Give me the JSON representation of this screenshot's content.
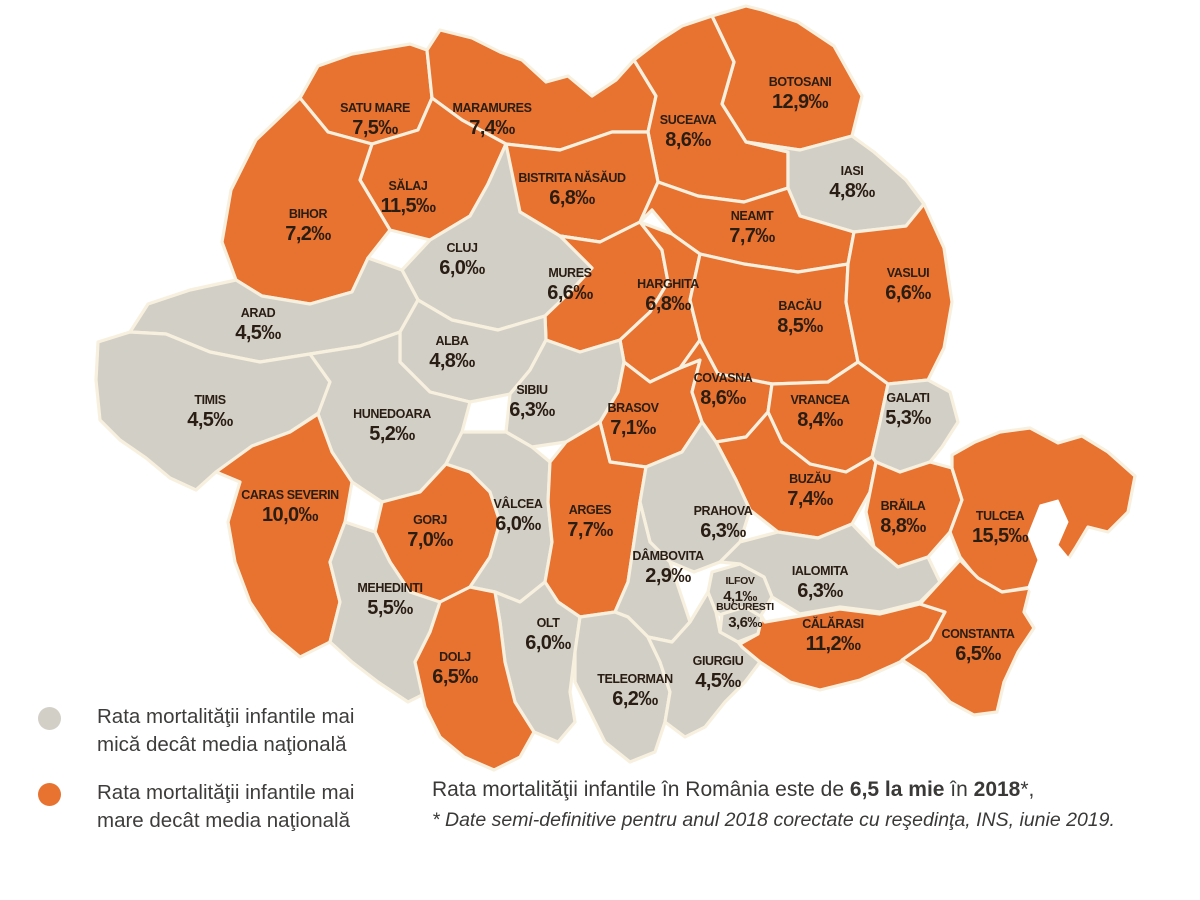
{
  "colors": {
    "above": "#e8722f",
    "below": "#d2cfc7",
    "border": "#f8f0df",
    "label": "#2a1d13",
    "legend_text": "#3e3d3c",
    "water": "#ffffff"
  },
  "map": {
    "counties": [
      {
        "id": "sm",
        "name": "SATU MARE",
        "value": "7,5‰",
        "status": "above"
      },
      {
        "id": "mm",
        "name": "MARAMURES",
        "value": "7,4‰",
        "status": "above"
      },
      {
        "id": "bt",
        "name": "BOTOSANI",
        "value": "12,9‰",
        "status": "above"
      },
      {
        "id": "sv",
        "name": "SUCEAVA",
        "value": "8,6‰",
        "status": "above"
      },
      {
        "id": "is",
        "name": "IASI",
        "value": "4,8‰",
        "status": "below"
      },
      {
        "id": "sj",
        "name": "SĂLAJ",
        "value": "11,5‰",
        "status": "above"
      },
      {
        "id": "bh",
        "name": "BIHOR",
        "value": "7,2‰",
        "status": "above"
      },
      {
        "id": "bn",
        "name": "BISTRITA NĂSĂUD",
        "value": "6,8‰",
        "status": "above"
      },
      {
        "id": "nt",
        "name": "NEAMT",
        "value": "7,7‰",
        "status": "above"
      },
      {
        "id": "cj",
        "name": "CLUJ",
        "value": "6,0‰",
        "status": "below"
      },
      {
        "id": "ms",
        "name": "MURES",
        "value": "6,6‰",
        "status": "above"
      },
      {
        "id": "hr",
        "name": "HARGHITA",
        "value": "6,8‰",
        "status": "above"
      },
      {
        "id": "bc",
        "name": "BACĂU",
        "value": "8,5‰",
        "status": "above"
      },
      {
        "id": "vs",
        "name": "VASLUI",
        "value": "6,6‰",
        "status": "above"
      },
      {
        "id": "ar",
        "name": "ARAD",
        "value": "4,5‰",
        "status": "below"
      },
      {
        "id": "ab",
        "name": "ALBA",
        "value": "4,8‰",
        "status": "below"
      },
      {
        "id": "tm",
        "name": "TIMIS",
        "value": "4,5‰",
        "status": "below"
      },
      {
        "id": "hd",
        "name": "HUNEDOARA",
        "value": "5,2‰",
        "status": "below"
      },
      {
        "id": "sb",
        "name": "SIBIU",
        "value": "6,3‰",
        "status": "below"
      },
      {
        "id": "bv",
        "name": "BRASOV",
        "value": "7,1‰",
        "status": "above"
      },
      {
        "id": "cv",
        "name": "COVASNA",
        "value": "8,6‰",
        "status": "above"
      },
      {
        "id": "vn",
        "name": "VRANCEA",
        "value": "8,4‰",
        "status": "above"
      },
      {
        "id": "gl",
        "name": "GALATI",
        "value": "5,3‰",
        "status": "below"
      },
      {
        "id": "bz",
        "name": "BUZĂU",
        "value": "7,4‰",
        "status": "above"
      },
      {
        "id": "cs",
        "name": "CARAS SEVERIN",
        "value": "10,0‰",
        "status": "above"
      },
      {
        "id": "gj",
        "name": "GORJ",
        "value": "7,0‰",
        "status": "above"
      },
      {
        "id": "vl",
        "name": "VÂLCEA",
        "value": "6,0‰",
        "status": "below"
      },
      {
        "id": "ag",
        "name": "ARGES",
        "value": "7,7‰",
        "status": "above"
      },
      {
        "id": "ph",
        "name": "PRAHOVA",
        "value": "6,3‰",
        "status": "below"
      },
      {
        "id": "db",
        "name": "DÂMBOVITA",
        "value": "2,9‰",
        "status": "below"
      },
      {
        "id": "br",
        "name": "BRĂILA",
        "value": "8,8‰",
        "status": "above"
      },
      {
        "id": "tl",
        "name": "TULCEA",
        "value": "15,5‰",
        "status": "above"
      },
      {
        "id": "mh",
        "name": "MEHEDINTI",
        "value": "5,5‰",
        "status": "below"
      },
      {
        "id": "olt",
        "name": "OLT",
        "value": "6,0‰",
        "status": "below"
      },
      {
        "id": "dj",
        "name": "DOLJ",
        "value": "6,5‰",
        "status": "above"
      },
      {
        "id": "tr",
        "name": "TELEORMAN",
        "value": "6,2‰",
        "status": "below"
      },
      {
        "id": "gr",
        "name": "GIURGIU",
        "value": "4,5‰",
        "status": "below"
      },
      {
        "id": "il",
        "name": "IALOMITA",
        "value": "6,3‰",
        "status": "below"
      },
      {
        "id": "if",
        "name": "ILFOV",
        "value": "4,1‰",
        "status": "below"
      },
      {
        "id": "buc",
        "name": "BUCURESTI",
        "value": "3,6‰",
        "status": "below"
      },
      {
        "id": "cl",
        "name": "CĂLĂRASI",
        "value": "11,2‰",
        "status": "above"
      },
      {
        "id": "ct",
        "name": "CONSTANTA",
        "value": "6,5‰",
        "status": "above"
      }
    ]
  },
  "legend": {
    "items": [
      {
        "color_key": "below",
        "lines": [
          "Rata mortalităţii infantile mai",
          "mică decât media naţională"
        ]
      },
      {
        "color_key": "above",
        "lines": [
          "Rata mortalităţii infantile mai",
          "mare decât media naţională"
        ]
      }
    ]
  },
  "caption": {
    "line1_parts": [
      {
        "text": "Rata mortalităţii infantile în România este de ",
        "bold": false
      },
      {
        "text": "6,5 la mie",
        "bold": true
      },
      {
        "text": " în ",
        "bold": false
      },
      {
        "text": "2018",
        "bold": true
      },
      {
        "text": "*,",
        "bold": false
      }
    ],
    "line2": "* Date semi-definitive pentru anul 2018 corectate cu reşedinţa, INS, iunie 2019."
  }
}
